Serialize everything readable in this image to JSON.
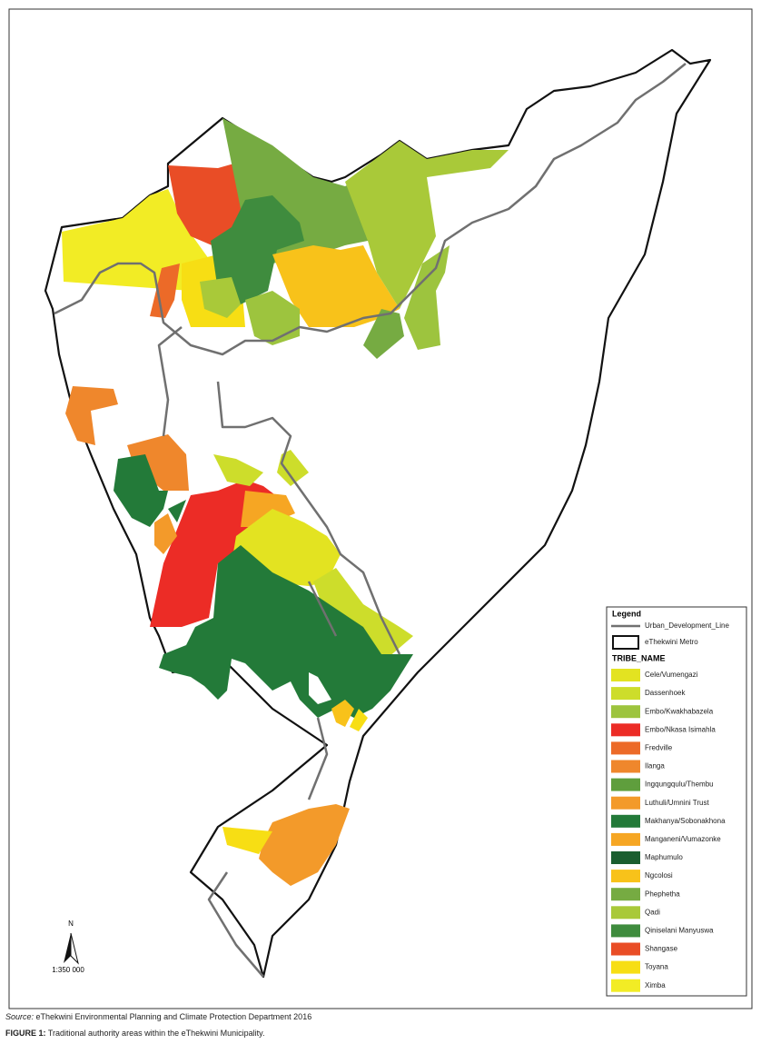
{
  "map": {
    "legend": {
      "title": "Legend",
      "urban_line": "Urban_Development_Line",
      "metro": "eThekwini Metro",
      "heading": "TRIBE_NAME",
      "items": [
        {
          "name": "Cele/Vumengazi",
          "color": "#e3e321"
        },
        {
          "name": "Dassenhoek",
          "color": "#cddd2b"
        },
        {
          "name": "Embo/Kwakhabazela",
          "color": "#9dc43e"
        },
        {
          "name": "Embo/Nkasa Isimahla",
          "color": "#ec2c26"
        },
        {
          "name": "Fredville",
          "color": "#ec6a28"
        },
        {
          "name": "Ilanga",
          "color": "#ef872c"
        },
        {
          "name": "Ingqungqulu/Thembu",
          "color": "#5f9e3d"
        },
        {
          "name": "Luthuli/Umnini Trust",
          "color": "#f39a2a"
        },
        {
          "name": "Makhanya/Sobonakhona",
          "color": "#237a39"
        },
        {
          "name": "Manganeni/Vumazonke",
          "color": "#f6a623"
        },
        {
          "name": "Maphumulo",
          "color": "#1a5e2f"
        },
        {
          "name": "Ngcolosi",
          "color": "#f8c21a"
        },
        {
          "name": "Phephetha",
          "color": "#76ab42"
        },
        {
          "name": "Qadi",
          "color": "#a9c939"
        },
        {
          "name": "Qiniselani Manyuswa",
          "color": "#3f8c3e"
        },
        {
          "name": "Shangase",
          "color": "#e94d26"
        },
        {
          "name": "Toyana",
          "color": "#f7de14"
        },
        {
          "name": "Ximba",
          "color": "#f2ec25"
        }
      ]
    },
    "north": "N",
    "scale": "1:350 000"
  },
  "source": {
    "label": "Source:",
    "text": " eThekwini Environmental Planning and Climate Protection Department 2016"
  },
  "caption": {
    "label": "FIGURE 1:",
    "text": " Traditional authority areas within the eThekwini Municipality."
  }
}
